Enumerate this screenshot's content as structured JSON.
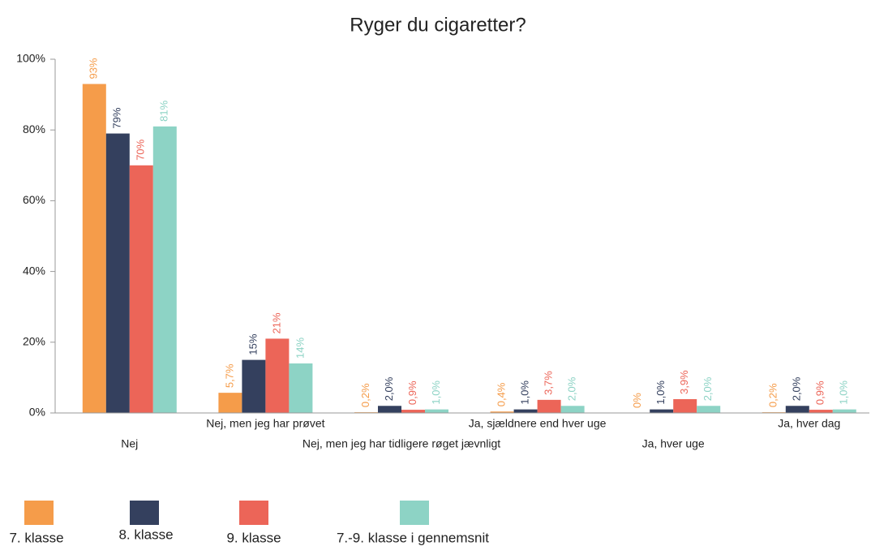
{
  "chart_data": {
    "type": "bar",
    "title": "Ryger du cigaretter?",
    "categories": [
      "Nej",
      "Nej, men jeg har prøvet",
      "Nej, men jeg har tidligere røget jævnligt",
      "Ja, sjældnere end hver uge",
      "Ja, hver uge",
      "Ja, hver dag"
    ],
    "series": [
      {
        "name": "7. klasse",
        "color": "#f59c4a",
        "values": [
          93,
          5.7,
          0.2,
          0.4,
          0,
          0.2
        ],
        "value_labels": [
          "93%",
          "5,7%",
          "0,2%",
          "0,4%",
          "0%",
          "0,2%"
        ]
      },
      {
        "name": "8. klasse",
        "color": "#34405e",
        "values": [
          79,
          15,
          2.0,
          1.0,
          1.0,
          2.0
        ],
        "value_labels": [
          "79%",
          "15%",
          "2,0%",
          "1,0%",
          "1,0%",
          "2,0%"
        ]
      },
      {
        "name": "9. klasse",
        "color": "#ec6558",
        "values": [
          70,
          21,
          0.9,
          3.7,
          3.9,
          0.9
        ],
        "value_labels": [
          "70%",
          "21%",
          "0,9%",
          "3,7%",
          "3,9%",
          "0,9%"
        ]
      },
      {
        "name": "7.-9. klasse i gennemsnit",
        "color": "#8dd3c5",
        "values": [
          81,
          14,
          1.0,
          2.0,
          2.0,
          1.0
        ],
        "value_labels": [
          "81%",
          "14%",
          "1,0%",
          "2,0%",
          "2,0%",
          "1,0%"
        ]
      }
    ],
    "ylim": [
      0,
      100
    ],
    "yticks": [
      {
        "value": 0,
        "label": "0%"
      },
      {
        "value": 20,
        "label": "20%"
      },
      {
        "value": 40,
        "label": "40%"
      },
      {
        "value": 60,
        "label": "60%"
      },
      {
        "value": 80,
        "label": "80%"
      },
      {
        "value": 100,
        "label": "100%"
      }
    ],
    "grid": false,
    "legend": "bottom"
  }
}
